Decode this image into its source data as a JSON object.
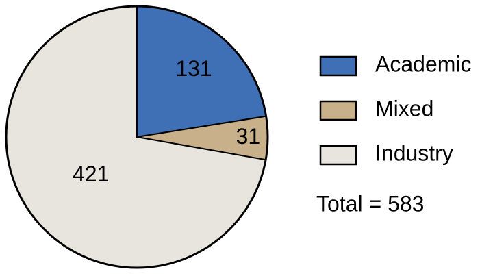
{
  "chart_data": {
    "type": "pie",
    "categories": [
      "Academic",
      "Mixed",
      "Industry"
    ],
    "values": [
      131,
      31,
      421
    ],
    "colors": [
      "#3f6fb5",
      "#c8b08a",
      "#e8e4de"
    ],
    "annotation": "Total = 583",
    "legend": "right"
  }
}
